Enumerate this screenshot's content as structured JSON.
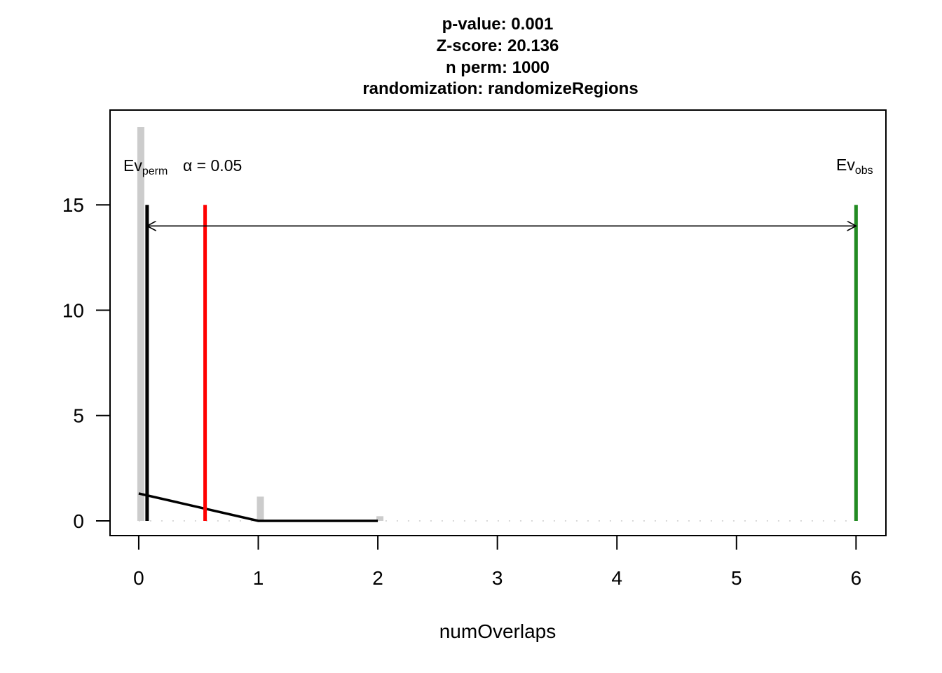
{
  "chart_data": {
    "type": "bar",
    "title_lines": [
      "p-value:  0.001",
      "Z-score:  20.136",
      "n perm:  1000",
      "randomization:  randomizeRegions"
    ],
    "xlabel": "numOverlaps",
    "ylabel": "",
    "xlim": [
      -0.24,
      6.25
    ],
    "ylim": [
      -0.7,
      19.5
    ],
    "x_ticks": [
      0,
      1,
      2,
      3,
      4,
      5,
      6
    ],
    "y_ticks": [
      0,
      5,
      10,
      15
    ],
    "histogram": {
      "bins": [
        0,
        1,
        2
      ],
      "density": [
        18.7,
        1.15,
        0.22
      ],
      "color": "#cccccc"
    },
    "density_curve": {
      "x": [
        0,
        1,
        2
      ],
      "y": [
        1.3,
        0.0,
        0.0
      ],
      "color": "#000000"
    },
    "lines": {
      "ev_perm": {
        "x": 0.07,
        "color": "#000000",
        "label_main": "Ev",
        "label_sub": "perm"
      },
      "alpha": {
        "x": 0.555,
        "color": "#ff0000",
        "label": "α = 0.05"
      },
      "ev_obs": {
        "x": 6.0,
        "color": "#228B22",
        "label_main": "Ev",
        "label_sub": "obs"
      }
    },
    "line_height": 15,
    "arrow": {
      "from": 0.07,
      "to": 6.0,
      "y": 14.0
    }
  }
}
